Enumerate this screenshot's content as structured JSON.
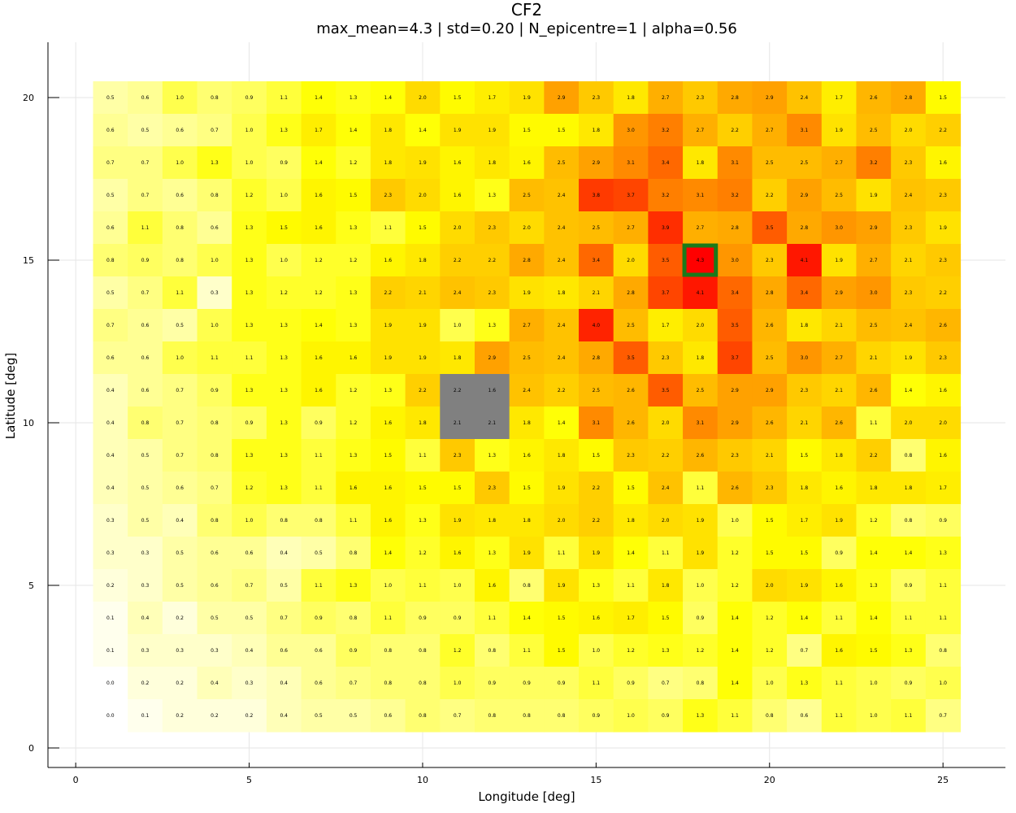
{
  "chart_data": {
    "type": "heatmap",
    "title": "CF2",
    "subtitle": "max_mean=4.3 | std=0.20 | N_epicentre=1 | alpha=0.56",
    "xlabel": "Longitude [deg]",
    "ylabel": "Latitude [deg]",
    "xlim": [
      -0.8,
      26.8
    ],
    "ylim": [
      -0.6,
      21.7
    ],
    "xticks": [
      0,
      5,
      10,
      15,
      20,
      25
    ],
    "yticks": [
      0,
      5,
      10,
      15,
      20
    ],
    "grid": true,
    "x": [
      1,
      2,
      3,
      4,
      5,
      6,
      7,
      8,
      9,
      10,
      11,
      12,
      13,
      14,
      15,
      16,
      17,
      18,
      19,
      20,
      21,
      22,
      23,
      24,
      25
    ],
    "y": [
      1,
      2,
      3,
      4,
      5,
      6,
      7,
      8,
      9,
      10,
      11,
      12,
      13,
      14,
      15,
      16,
      17,
      18,
      19,
      20
    ],
    "values_by_row_top_to_bottom": [
      [
        0.5,
        0.6,
        1.0,
        0.8,
        0.9,
        1.1,
        1.4,
        1.3,
        1.4,
        2.0,
        1.5,
        1.7,
        1.9,
        2.9,
        2.3,
        1.8,
        2.7,
        2.3,
        2.8,
        2.9,
        2.4,
        1.7,
        2.6,
        2.8,
        1.5
      ],
      [
        0.6,
        0.5,
        0.6,
        0.7,
        1.0,
        1.3,
        1.7,
        1.4,
        1.8,
        1.4,
        1.9,
        1.9,
        1.5,
        1.5,
        1.8,
        3.0,
        3.2,
        2.7,
        2.2,
        2.7,
        3.1,
        1.9,
        2.5,
        2.0,
        2.2
      ],
      [
        0.7,
        0.7,
        1.0,
        1.3,
        1.0,
        0.9,
        1.4,
        1.2,
        1.8,
        1.9,
        1.6,
        1.8,
        1.6,
        2.5,
        2.9,
        3.1,
        3.4,
        1.8,
        3.1,
        2.5,
        2.5,
        2.7,
        3.2,
        2.3,
        1.6
      ],
      [
        0.5,
        0.7,
        0.6,
        0.8,
        1.2,
        1.0,
        1.6,
        1.5,
        2.3,
        2.0,
        1.6,
        1.3,
        2.5,
        2.4,
        3.8,
        3.7,
        3.2,
        3.1,
        3.2,
        2.2,
        2.9,
        2.5,
        1.9,
        2.4,
        2.3
      ],
      [
        0.6,
        1.1,
        0.8,
        0.6,
        1.3,
        1.5,
        1.6,
        1.3,
        1.1,
        1.5,
        2.0,
        2.3,
        2.0,
        2.4,
        2.5,
        2.7,
        3.9,
        2.7,
        2.8,
        3.5,
        2.8,
        3.0,
        2.9,
        2.3,
        1.9
      ],
      [
        0.8,
        0.9,
        0.8,
        1.0,
        1.3,
        1.0,
        1.2,
        1.2,
        1.6,
        1.8,
        2.2,
        2.2,
        2.8,
        2.4,
        3.4,
        2.0,
        3.5,
        4.3,
        3.0,
        2.3,
        4.1,
        1.9,
        2.7,
        2.1,
        2.3
      ],
      [
        0.5,
        0.7,
        1.1,
        0.3,
        1.3,
        1.2,
        1.2,
        1.3,
        2.2,
        2.1,
        2.4,
        2.3,
        1.9,
        1.8,
        2.1,
        2.8,
        3.7,
        4.1,
        3.4,
        2.8,
        3.4,
        2.9,
        3.0,
        2.3,
        2.2
      ],
      [
        0.7,
        0.6,
        0.5,
        1.0,
        1.3,
        1.3,
        1.4,
        1.3,
        1.9,
        1.9,
        1.0,
        1.3,
        2.7,
        2.4,
        4.0,
        2.5,
        1.7,
        2.0,
        3.5,
        2.6,
        1.8,
        2.1,
        2.5,
        2.4,
        2.6
      ],
      [
        0.6,
        0.6,
        1.0,
        1.1,
        1.1,
        1.3,
        1.6,
        1.6,
        1.9,
        1.9,
        1.8,
        2.9,
        2.5,
        2.4,
        2.8,
        3.5,
        2.3,
        1.8,
        3.7,
        2.5,
        3.0,
        2.7,
        2.1,
        1.9,
        2.3
      ],
      [
        0.4,
        0.6,
        0.7,
        0.9,
        1.3,
        1.3,
        1.6,
        1.2,
        1.3,
        2.2,
        2.2,
        1.6,
        2.4,
        2.2,
        2.5,
        2.6,
        3.5,
        2.5,
        2.9,
        2.9,
        2.3,
        2.1,
        2.6,
        1.4,
        1.6
      ],
      [
        0.4,
        0.8,
        0.7,
        0.8,
        0.9,
        1.3,
        0.9,
        1.2,
        1.6,
        1.8,
        2.1,
        2.1,
        1.8,
        1.4,
        3.1,
        2.6,
        2.0,
        3.1,
        2.9,
        2.6,
        2.1,
        2.6,
        1.1,
        2.0,
        2.0
      ],
      [
        0.4,
        0.5,
        0.7,
        0.8,
        1.3,
        1.3,
        1.1,
        1.3,
        1.5,
        1.1,
        2.3,
        1.3,
        1.6,
        1.8,
        1.5,
        2.3,
        2.2,
        2.6,
        2.3,
        2.1,
        1.5,
        1.8,
        2.2,
        0.8,
        1.6
      ],
      [
        0.4,
        0.5,
        0.6,
        0.7,
        1.2,
        1.3,
        1.1,
        1.6,
        1.6,
        1.5,
        1.5,
        2.3,
        1.5,
        1.9,
        2.2,
        1.5,
        2.4,
        1.1,
        2.6,
        2.3,
        1.8,
        1.6,
        1.8,
        1.8,
        1.7
      ],
      [
        0.3,
        0.5,
        0.4,
        0.8,
        1.0,
        0.8,
        0.8,
        1.1,
        1.6,
        1.3,
        1.9,
        1.8,
        1.8,
        2.0,
        2.2,
        1.8,
        2.0,
        1.9,
        1.0,
        1.5,
        1.7,
        1.9,
        1.2,
        0.8,
        0.9
      ],
      [
        0.3,
        0.3,
        0.5,
        0.6,
        0.6,
        0.4,
        0.5,
        0.8,
        1.4,
        1.2,
        1.6,
        1.3,
        1.9,
        1.1,
        1.9,
        1.4,
        1.1,
        1.9,
        1.2,
        1.5,
        1.5,
        0.9,
        1.4,
        1.4,
        1.3
      ],
      [
        0.2,
        0.3,
        0.5,
        0.6,
        0.7,
        0.5,
        1.1,
        1.3,
        1.0,
        1.1,
        1.0,
        1.6,
        0.8,
        1.9,
        1.3,
        1.1,
        1.8,
        1.0,
        1.2,
        2.0,
        1.9,
        1.6,
        1.3,
        0.9,
        1.1
      ],
      [
        0.1,
        0.4,
        0.2,
        0.5,
        0.5,
        0.7,
        0.9,
        0.8,
        1.1,
        0.9,
        0.9,
        1.1,
        1.4,
        1.5,
        1.6,
        1.7,
        1.5,
        0.9,
        1.4,
        1.2,
        1.4,
        1.1,
        1.4,
        1.1,
        1.1
      ],
      [
        0.1,
        0.3,
        0.3,
        0.3,
        0.4,
        0.6,
        0.6,
        0.9,
        0.8,
        0.8,
        1.2,
        0.8,
        1.1,
        1.5,
        1.0,
        1.2,
        1.3,
        1.2,
        1.4,
        1.2,
        0.7,
        1.6,
        1.5,
        1.3,
        0.8
      ],
      [
        0.0,
        0.2,
        0.2,
        0.4,
        0.3,
        0.4,
        0.6,
        0.7,
        0.8,
        0.8,
        1.0,
        0.9,
        0.9,
        0.9,
        1.1,
        0.9,
        0.7,
        0.8,
        1.4,
        1.0,
        1.3,
        1.1,
        1.0,
        0.9,
        1.0
      ],
      [
        0.0,
        0.1,
        0.2,
        0.2,
        0.2,
        0.4,
        0.5,
        0.5,
        0.6,
        0.8,
        0.7,
        0.8,
        0.8,
        0.8,
        0.9,
        1.0,
        0.9,
        1.3,
        1.1,
        0.8,
        0.6,
        1.1,
        1.0,
        1.1,
        0.7
      ]
    ],
    "masked_cells": [
      [
        11,
        10
      ],
      [
        12,
        10
      ],
      [
        11,
        11
      ],
      [
        12,
        11
      ]
    ],
    "masked_color": "#808080",
    "highlight_cell": [
      18,
      15
    ],
    "highlight_color": "#1a7a1a",
    "colormap": [
      "#ffffff",
      "#ffff00",
      "#ffa500",
      "#ff0000"
    ],
    "value_range": [
      0,
      4.3
    ]
  }
}
